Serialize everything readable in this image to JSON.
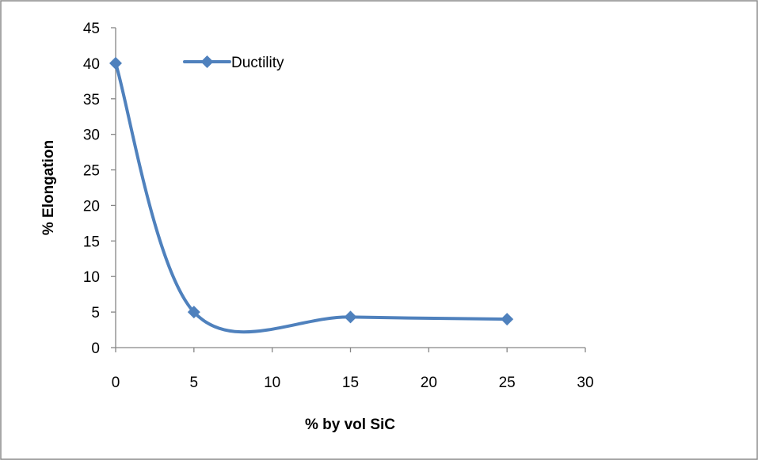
{
  "chart_data": {
    "type": "scatter",
    "title": "",
    "xlabel": "% by vol SiC",
    "ylabel": "% Elongation",
    "xlim": [
      0,
      30
    ],
    "ylim": [
      0,
      45
    ],
    "x_ticks": [
      0,
      5,
      10,
      15,
      20,
      25,
      30
    ],
    "y_ticks": [
      0,
      5,
      10,
      15,
      20,
      25,
      30,
      35,
      40,
      45
    ],
    "grid": false,
    "smoothed_line": true,
    "marker": "diamond",
    "legend_position": "top-left",
    "series": [
      {
        "name": "Ductility",
        "color": "#4F81BD",
        "x": [
          0,
          5,
          15,
          25
        ],
        "y": [
          40,
          5,
          4.3,
          4
        ]
      }
    ]
  }
}
